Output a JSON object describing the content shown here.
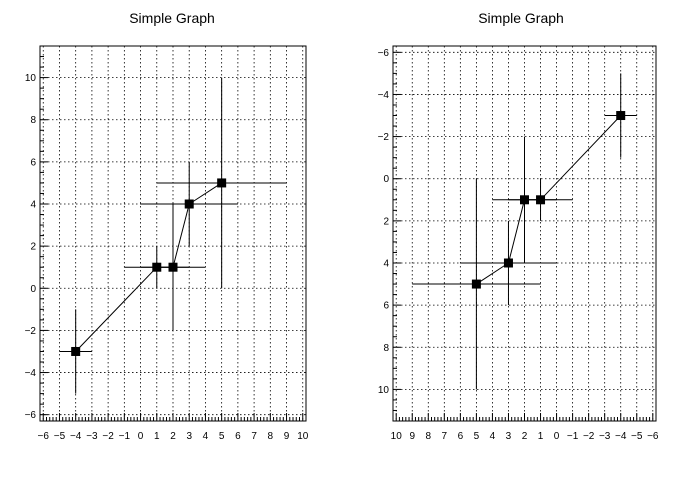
{
  "chart_data": [
    {
      "type": "scatter",
      "title": "Simple Graph",
      "x_reversed": false,
      "y_reversed": false,
      "xlim": [
        -6.2,
        10.2
      ],
      "ylim": [
        -6.3,
        11.5
      ],
      "x_major_ticks": [
        -6,
        -5,
        -4,
        -3,
        -2,
        -1,
        0,
        1,
        2,
        3,
        4,
        5,
        6,
        7,
        8,
        9,
        10
      ],
      "y_major_ticks": [
        -6,
        -4,
        -2,
        0,
        2,
        4,
        6,
        8,
        10
      ],
      "y_minor_step": 0.5,
      "x_minor_step": 0.2,
      "grid": true,
      "connected": true,
      "points": [
        {
          "x": -4,
          "y": -3,
          "ex": 1,
          "ey": 2
        },
        {
          "x": 1,
          "y": 1,
          "ex": 2,
          "ey": 1
        },
        {
          "x": 2,
          "y": 1,
          "ex": 2,
          "ey": 3
        },
        {
          "x": 3,
          "y": 4,
          "ex": 3,
          "ey": 2
        },
        {
          "x": 5,
          "y": 5,
          "ex": 4,
          "ey": 5
        }
      ]
    },
    {
      "type": "scatter",
      "title": "Simple Graph",
      "x_reversed": true,
      "y_reversed": true,
      "xlim": [
        -6.2,
        10.2
      ],
      "ylim": [
        -6.3,
        11.5
      ],
      "x_major_ticks": [
        -6,
        -5,
        -4,
        -3,
        -2,
        -1,
        0,
        1,
        2,
        3,
        4,
        5,
        6,
        7,
        8,
        9,
        10
      ],
      "y_major_ticks": [
        -6,
        -4,
        -2,
        0,
        2,
        4,
        6,
        8,
        10
      ],
      "y_minor_step": 0.5,
      "x_minor_step": 0.2,
      "grid": true,
      "connected": true,
      "points": [
        {
          "x": -4,
          "y": -3,
          "ex": 1,
          "ey": 2
        },
        {
          "x": 1,
          "y": 1,
          "ex": 2,
          "ey": 1
        },
        {
          "x": 2,
          "y": 1,
          "ex": 2,
          "ey": 3
        },
        {
          "x": 3,
          "y": 4,
          "ex": 3,
          "ey": 2
        },
        {
          "x": 5,
          "y": 5,
          "ex": 4,
          "ey": 5
        }
      ]
    }
  ]
}
